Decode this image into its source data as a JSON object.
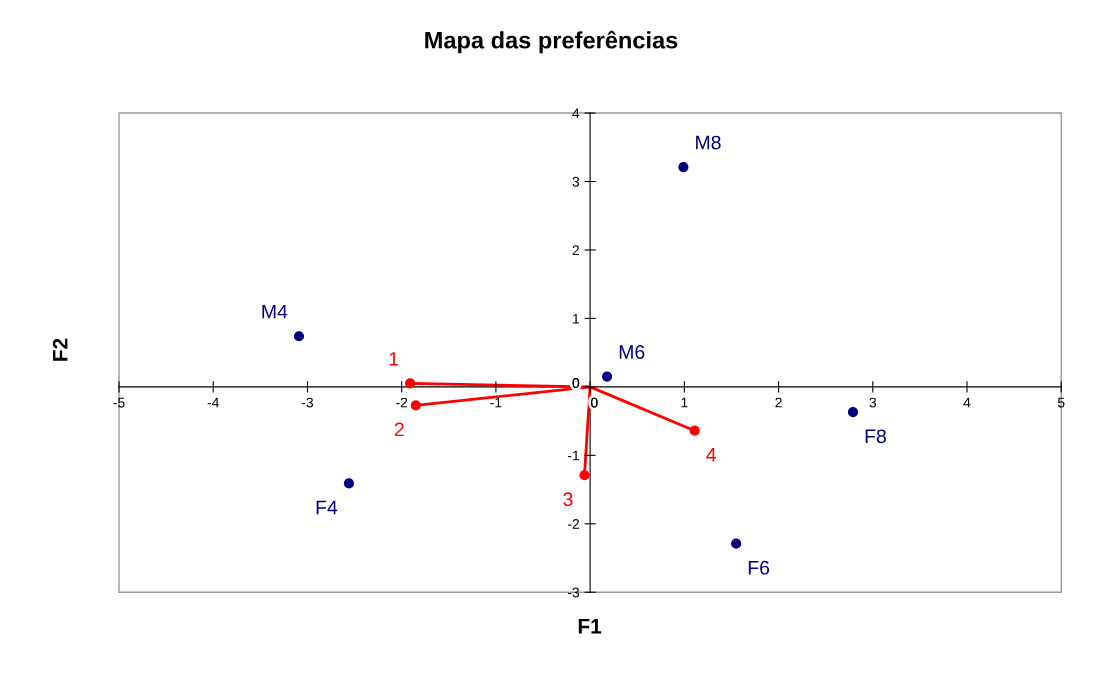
{
  "chart_data": {
    "type": "scatter",
    "title": "Mapa das preferências",
    "xlabel": "F1",
    "ylabel": "F2",
    "xlim": [
      -5,
      5
    ],
    "ylim": [
      -3,
      4
    ],
    "xticks": [
      -5,
      -4,
      -3,
      -2,
      -1,
      0,
      1,
      2,
      3,
      4,
      5
    ],
    "yticks": [
      -3,
      -2,
      -1,
      0,
      1,
      2,
      3,
      4
    ],
    "grid": false,
    "legend": false,
    "marker": "circle",
    "annotations": [
      {
        "text": "M8",
        "x": 0.99,
        "y": 3.21
      },
      {
        "text": "M4",
        "x": -3.09,
        "y": 0.74
      },
      {
        "text": "M6",
        "x": 0.18,
        "y": 0.15
      },
      {
        "text": "F8",
        "x": 2.79,
        "y": -0.37
      },
      {
        "text": "F4",
        "x": -2.56,
        "y": -1.41
      },
      {
        "text": "F6",
        "x": 1.55,
        "y": -2.29
      },
      {
        "text": "1",
        "x": -1.91,
        "y": 0.05
      },
      {
        "text": "2",
        "x": -1.85,
        "y": -0.27
      },
      {
        "text": "3",
        "x": -0.06,
        "y": -1.29
      },
      {
        "text": "4",
        "x": 1.11,
        "y": -0.64
      }
    ],
    "series": [
      {
        "color": "#000080",
        "x": [
          0.99,
          -3.09,
          0.18,
          2.79,
          -2.56,
          1.55
        ],
        "values": [
          3.21,
          0.74,
          0.15,
          -0.37,
          -1.41,
          -2.29
        ]
      },
      {
        "color": "#ff0000",
        "x": [
          -1.91,
          -1.85,
          -0.06,
          1.11
        ],
        "values": [
          0.05,
          -0.27,
          -1.29,
          -0.64
        ]
      },
      {
        "type": "line",
        "color": "#ff0000",
        "marker": "none",
        "x": [
          0,
          -1.91,
          0,
          -1.85,
          0,
          -0.06,
          0,
          1.11
        ],
        "values": [
          0,
          0.05,
          0,
          -0.27,
          0,
          -1.29,
          0,
          -0.64
        ]
      }
    ]
  }
}
